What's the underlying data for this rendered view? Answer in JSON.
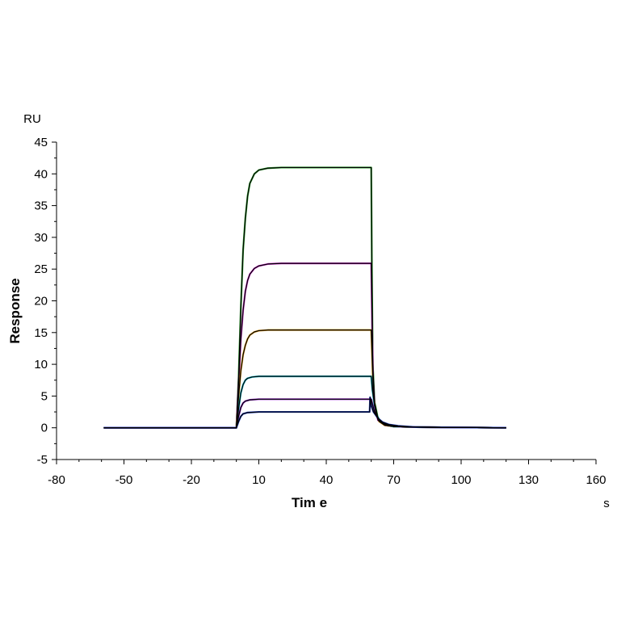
{
  "chart_data": {
    "type": "line",
    "xlabel": "Tim e",
    "ylabel": "Response",
    "x_unit": "s",
    "y_unit": "RU",
    "xlim": [
      -80,
      160
    ],
    "ylim": [
      -5,
      45
    ],
    "x_ticks": [
      -80,
      -50,
      -20,
      10,
      40,
      70,
      100,
      130,
      160
    ],
    "y_ticks": [
      -5,
      0,
      5,
      10,
      15,
      20,
      25,
      30,
      35,
      40,
      45
    ],
    "grid": false,
    "legend": "none",
    "series": [
      {
        "color": "#2ca02c",
        "values": [
          [
            -59,
            0
          ],
          [
            0,
            0
          ],
          [
            1,
            8
          ],
          [
            2,
            19
          ],
          [
            3,
            28
          ],
          [
            4,
            33
          ],
          [
            5,
            36.5
          ],
          [
            6,
            38.5
          ],
          [
            8,
            40
          ],
          [
            10,
            40.6
          ],
          [
            14,
            40.9
          ],
          [
            20,
            41
          ],
          [
            60,
            41
          ],
          [
            60.3,
            25
          ],
          [
            60.7,
            10
          ],
          [
            61.5,
            4
          ],
          [
            63,
            1.5
          ],
          [
            66,
            0.5
          ],
          [
            70,
            0.2
          ],
          [
            80,
            0.1
          ],
          [
            120,
            0
          ]
        ]
      },
      {
        "color": "#cc33cc",
        "values": [
          [
            -59,
            0
          ],
          [
            0,
            0
          ],
          [
            1,
            7
          ],
          [
            2,
            14
          ],
          [
            3,
            18.5
          ],
          [
            4,
            21.5
          ],
          [
            5,
            23.2
          ],
          [
            6,
            24.2
          ],
          [
            8,
            25.1
          ],
          [
            10,
            25.5
          ],
          [
            14,
            25.8
          ],
          [
            20,
            25.9
          ],
          [
            60,
            25.9
          ],
          [
            60.4,
            16
          ],
          [
            60.8,
            8
          ],
          [
            61.5,
            3.5
          ],
          [
            63,
            1.2
          ],
          [
            66,
            0.4
          ],
          [
            70,
            0.2
          ],
          [
            80,
            0.1
          ],
          [
            120,
            0
          ]
        ]
      },
      {
        "color": "#e6a01e",
        "values": [
          [
            -59,
            0
          ],
          [
            0,
            0
          ],
          [
            1,
            5
          ],
          [
            2,
            9
          ],
          [
            3,
            11.5
          ],
          [
            4,
            13
          ],
          [
            5,
            14
          ],
          [
            6,
            14.6
          ],
          [
            8,
            15.1
          ],
          [
            10,
            15.3
          ],
          [
            14,
            15.4
          ],
          [
            20,
            15.4
          ],
          [
            60,
            15.4
          ],
          [
            60.5,
            10
          ],
          [
            61,
            5
          ],
          [
            62,
            2.5
          ],
          [
            63.5,
            1
          ],
          [
            66,
            0.4
          ],
          [
            70,
            0.2
          ],
          [
            80,
            0.1
          ],
          [
            120,
            0
          ]
        ]
      },
      {
        "color": "#17becf",
        "values": [
          [
            -59,
            0
          ],
          [
            0,
            0
          ],
          [
            1,
            3
          ],
          [
            2,
            5.5
          ],
          [
            3,
            6.8
          ],
          [
            4,
            7.5
          ],
          [
            5,
            7.8
          ],
          [
            7,
            8
          ],
          [
            10,
            8.1
          ],
          [
            20,
            8.1
          ],
          [
            60,
            8.1
          ],
          [
            60.5,
            6
          ],
          [
            61.5,
            3.5
          ],
          [
            62.5,
            2
          ],
          [
            64,
            1
          ],
          [
            66,
            0.5
          ],
          [
            70,
            0.2
          ],
          [
            80,
            0.1
          ],
          [
            120,
            0
          ]
        ]
      },
      {
        "color": "#9933cc",
        "values": [
          [
            -59,
            0
          ],
          [
            0,
            0
          ],
          [
            1,
            1.8
          ],
          [
            2,
            3.2
          ],
          [
            3,
            3.9
          ],
          [
            4,
            4.2
          ],
          [
            6,
            4.4
          ],
          [
            10,
            4.5
          ],
          [
            20,
            4.5
          ],
          [
            60,
            4.5
          ],
          [
            60.5,
            3.8
          ],
          [
            61.5,
            2.5
          ],
          [
            63,
            1.4
          ],
          [
            65,
            0.8
          ],
          [
            68,
            0.4
          ],
          [
            72,
            0.2
          ],
          [
            80,
            0.1
          ],
          [
            120,
            0
          ]
        ]
      },
      {
        "color": "#1f3fbf",
        "values": [
          [
            -59,
            0
          ],
          [
            0,
            0
          ],
          [
            1,
            1
          ],
          [
            2,
            1.8
          ],
          [
            3,
            2.2
          ],
          [
            5,
            2.4
          ],
          [
            10,
            2.5
          ],
          [
            20,
            2.5
          ],
          [
            59.3,
            2.5
          ],
          [
            59.5,
            4.8
          ],
          [
            60,
            3.5
          ],
          [
            61,
            2.5
          ],
          [
            63,
            1.5
          ],
          [
            65,
            0.9
          ],
          [
            68,
            0.5
          ],
          [
            72,
            0.3
          ],
          [
            80,
            0.1
          ],
          [
            120,
            0
          ]
        ]
      }
    ]
  }
}
